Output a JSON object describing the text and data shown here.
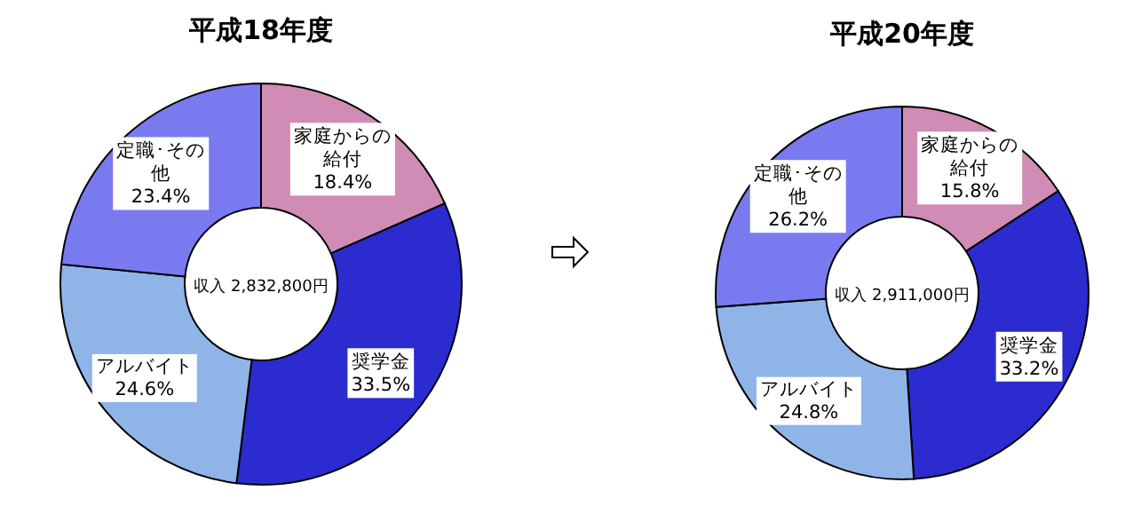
{
  "chart_data": [
    {
      "type": "donut",
      "title": "平成18年度",
      "categories": [
        "家庭からの給付",
        "奨学金",
        "アルバイト",
        "定職･その他"
      ],
      "values": [
        18.4,
        33.5,
        24.6,
        23.4
      ],
      "colors": [
        "#d08cb4",
        "#2b2bd0",
        "#8fb4e8",
        "#7a7af0"
      ],
      "value_labels": [
        "18.4%",
        "33.5%",
        "24.6%",
        "23.4%"
      ],
      "annotations": [
        "収入 2,832,800円"
      ]
    },
    {
      "type": "donut",
      "title": "平成20年度",
      "categories": [
        "家庭からの給付",
        "奨学金",
        "アルバイト",
        "定職･その他"
      ],
      "values": [
        15.8,
        33.2,
        24.8,
        26.2
      ],
      "colors": [
        "#d08cb4",
        "#2b2bd0",
        "#8fb4e8",
        "#7a7af0"
      ],
      "value_labels": [
        "15.8%",
        "33.2%",
        "24.8%",
        "26.2%"
      ],
      "annotations": [
        "収入 2,911,000円"
      ]
    }
  ]
}
